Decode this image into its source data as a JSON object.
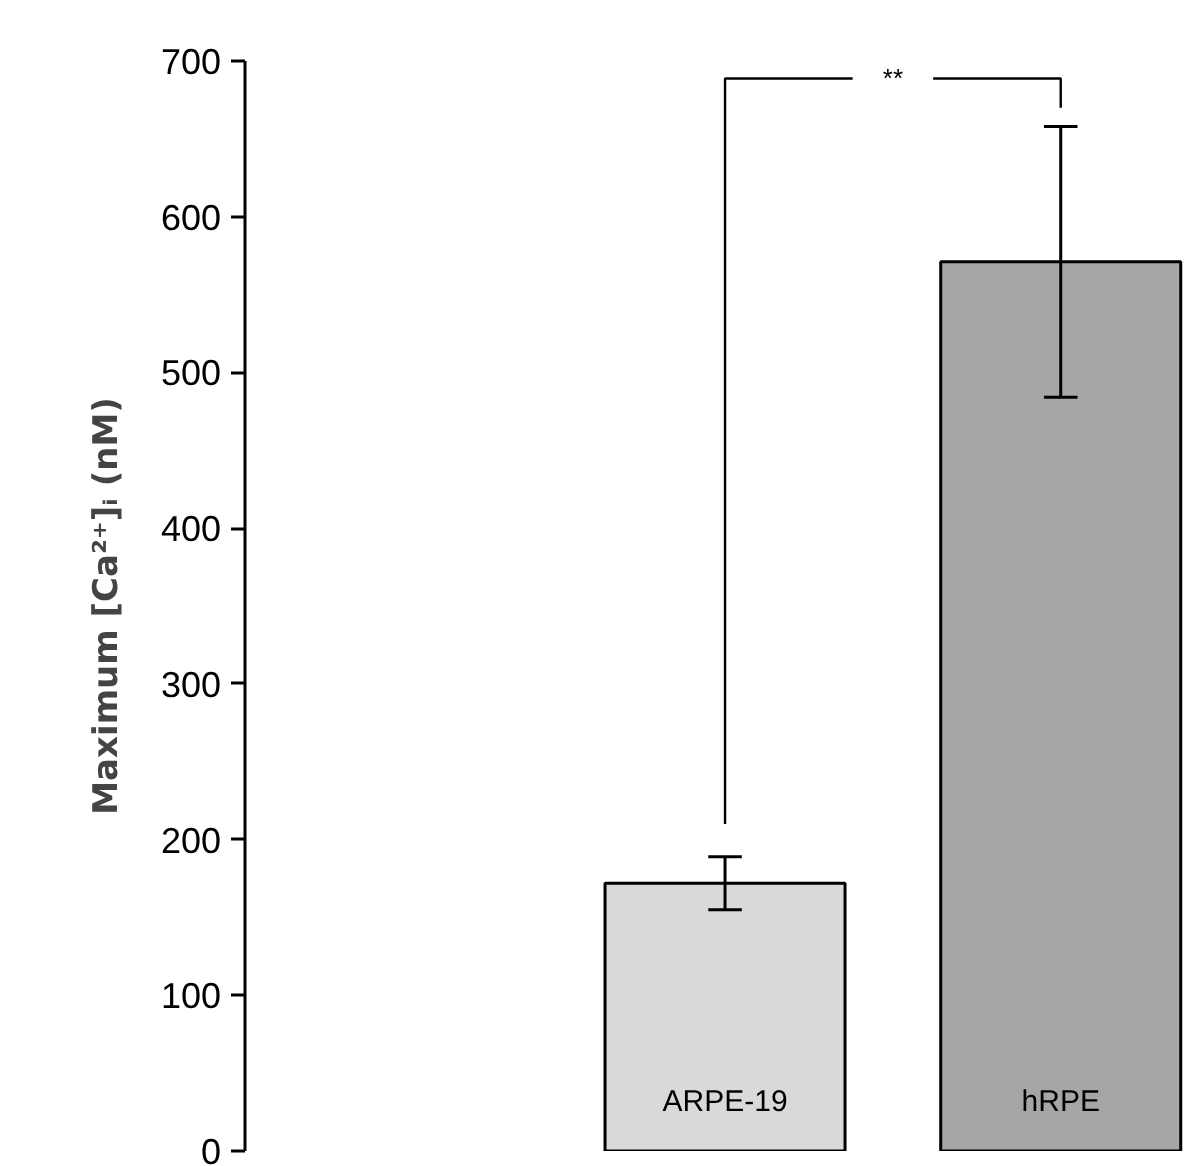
{
  "chart_data": {
    "type": "bar",
    "ylabel": "Maximum [Ca²⁺]ᵢ (nM)",
    "categories": [
      "ARPE-19",
      "hRPE"
    ],
    "values": [
      172,
      571
    ],
    "colors": [
      "#d9d9d9",
      "#a6a6a6"
    ],
    "errors": [
      17,
      87
    ],
    "ylim": [
      0,
      700
    ],
    "yticks": [
      0,
      100,
      200,
      300,
      400,
      500,
      600,
      700
    ],
    "grid": false,
    "annotations": [
      "**"
    ]
  }
}
